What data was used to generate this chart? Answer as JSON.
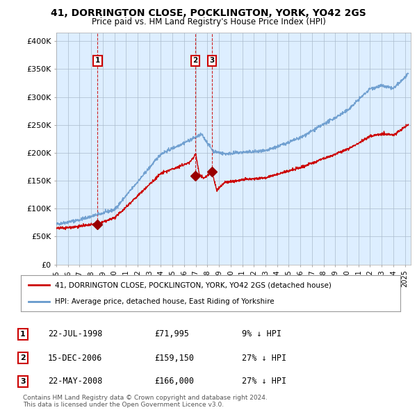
{
  "title": "41, DORRINGTON CLOSE, POCKLINGTON, YORK, YO42 2GS",
  "subtitle": "Price paid vs. HM Land Registry's House Price Index (HPI)",
  "ylabel_ticks": [
    "£0",
    "£50K",
    "£100K",
    "£150K",
    "£200K",
    "£250K",
    "£300K",
    "£350K",
    "£400K"
  ],
  "ytick_values": [
    0,
    50000,
    100000,
    150000,
    200000,
    250000,
    300000,
    350000,
    400000
  ],
  "ylim": [
    0,
    415000
  ],
  "xlim_start": 1995.0,
  "xlim_end": 2025.5,
  "legend_label_red": "41, DORRINGTON CLOSE, POCKLINGTON, YORK, YO42 2GS (detached house)",
  "legend_label_blue": "HPI: Average price, detached house, East Riding of Yorkshire",
  "sale_dates": [
    1998.55,
    2006.96,
    2008.39
  ],
  "sale_prices": [
    71995,
    159150,
    166000
  ],
  "sale_labels": [
    "1",
    "2",
    "3"
  ],
  "table_rows": [
    [
      "1",
      "22-JUL-1998",
      "£71,995",
      "9% ↓ HPI"
    ],
    [
      "2",
      "15-DEC-2006",
      "£159,150",
      "27% ↓ HPI"
    ],
    [
      "3",
      "22-MAY-2008",
      "£166,000",
      "27% ↓ HPI"
    ]
  ],
  "footnote1": "Contains HM Land Registry data © Crown copyright and database right 2024.",
  "footnote2": "This data is licensed under the Open Government Licence v3.0.",
  "line_color_red": "#cc0000",
  "line_color_blue": "#6699cc",
  "marker_color_red": "#990000",
  "bg_color": "#ffffff",
  "chart_bg_color": "#ddeeff",
  "grid_color": "#aabbcc",
  "label_box_color": "#cc0000",
  "dashed_line_color": "#cc0000"
}
